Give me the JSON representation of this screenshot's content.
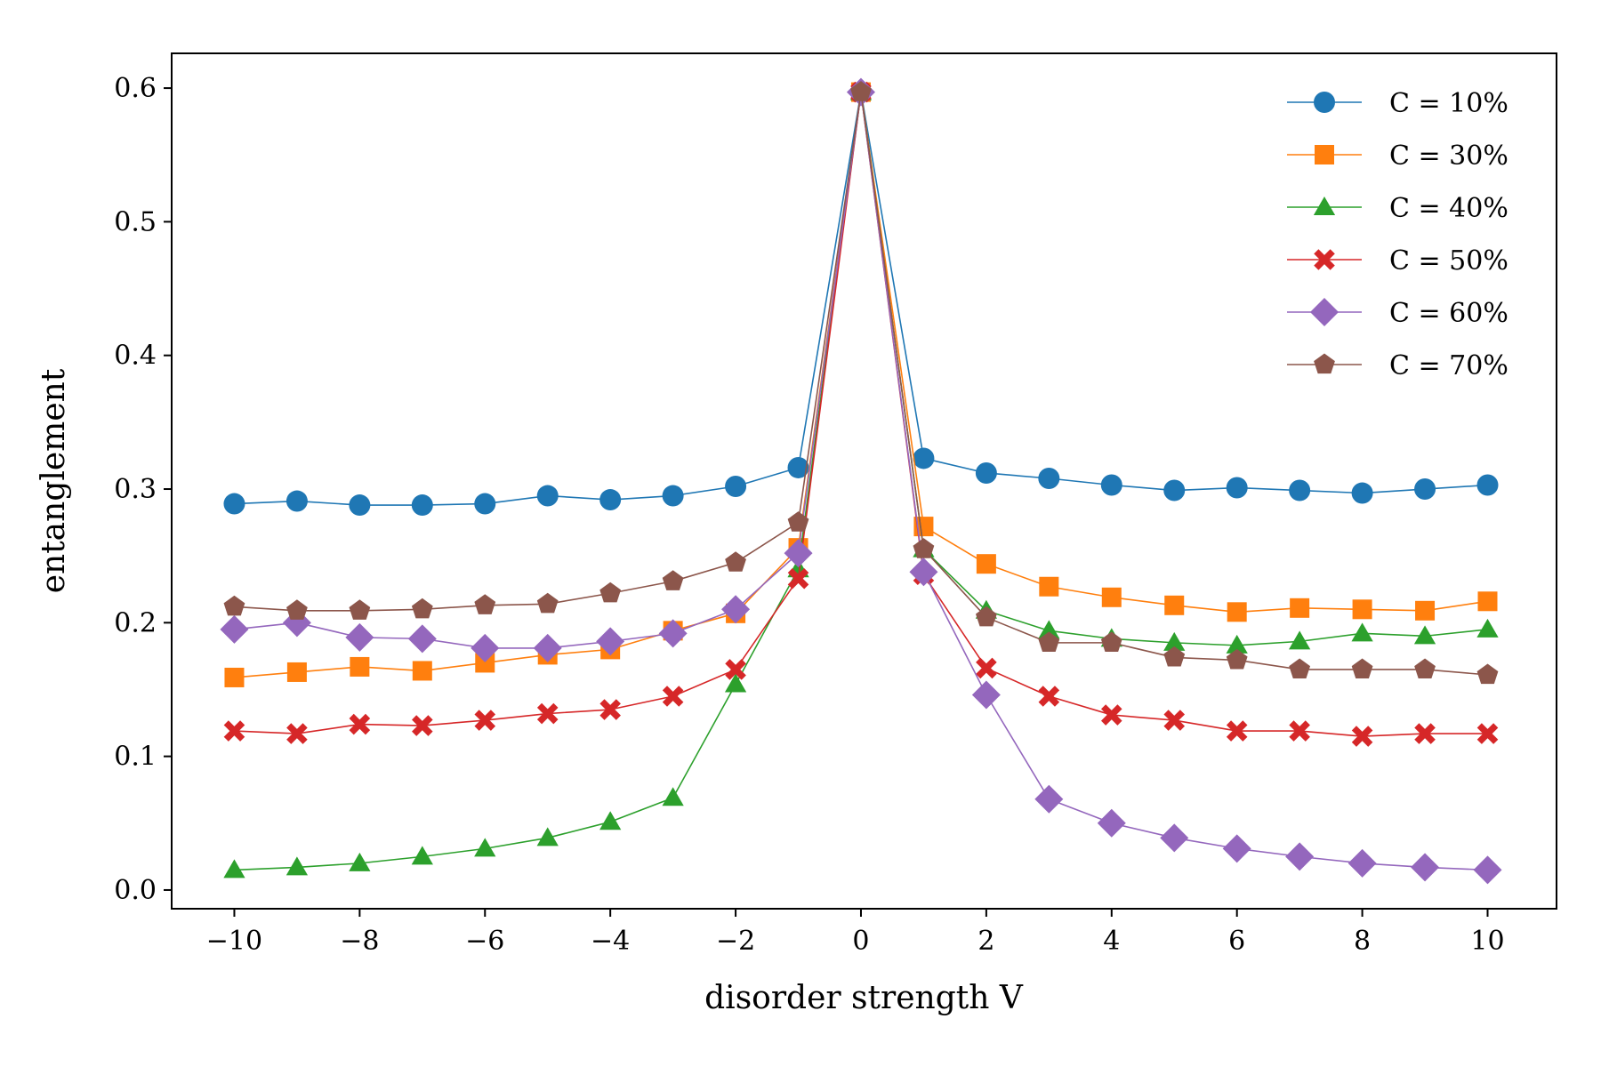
{
  "chart_data": {
    "type": "line",
    "title": "",
    "xlabel": "disorder strength V",
    "ylabel": "entanglement",
    "xlim": [
      -11,
      11.1
    ],
    "ylim": [
      -0.014,
      0.626
    ],
    "xticks": [
      -10,
      -8,
      -6,
      -4,
      -2,
      0,
      2,
      4,
      6,
      8,
      10
    ],
    "xtick_labels": [
      "−10",
      "−8",
      "−6",
      "−4",
      "−2",
      "0",
      "2",
      "4",
      "6",
      "8",
      "10"
    ],
    "yticks": [
      0.0,
      0.1,
      0.2,
      0.3,
      0.4,
      0.5,
      0.6
    ],
    "ytick_labels": [
      "0.0",
      "0.1",
      "0.2",
      "0.3",
      "0.4",
      "0.5",
      "0.6"
    ],
    "grid": false,
    "legend_position": "top-right",
    "x": [
      -10,
      -9,
      -8,
      -7,
      -6,
      -5,
      -4,
      -3,
      -2,
      -1,
      0,
      1,
      2,
      3,
      4,
      5,
      6,
      7,
      8,
      9,
      10
    ],
    "series": [
      {
        "name": "C = 10%",
        "color": "#1f77b4",
        "marker": "circle",
        "values": [
          0.289,
          0.291,
          0.288,
          0.288,
          0.289,
          0.295,
          0.292,
          0.295,
          0.302,
          0.316,
          0.597,
          0.323,
          0.312,
          0.308,
          0.303,
          0.299,
          0.301,
          0.299,
          0.297,
          0.3,
          0.303
        ]
      },
      {
        "name": "C = 30%",
        "color": "#ff7f0e",
        "marker": "square",
        "values": [
          0.159,
          0.163,
          0.167,
          0.164,
          0.17,
          0.176,
          0.18,
          0.194,
          0.207,
          0.256,
          0.597,
          0.272,
          0.244,
          0.227,
          0.219,
          0.213,
          0.208,
          0.211,
          0.21,
          0.209,
          0.216
        ]
      },
      {
        "name": "C = 40%",
        "color": "#2ca02c",
        "marker": "triangle",
        "values": [
          0.015,
          0.017,
          0.02,
          0.025,
          0.031,
          0.039,
          0.051,
          0.069,
          0.154,
          0.24,
          0.597,
          0.255,
          0.209,
          0.194,
          0.188,
          0.185,
          0.183,
          0.186,
          0.192,
          0.19,
          0.195
        ]
      },
      {
        "name": "C = 50%",
        "color": "#d62728",
        "marker": "x",
        "values": [
          0.119,
          0.117,
          0.124,
          0.123,
          0.127,
          0.132,
          0.135,
          0.145,
          0.165,
          0.233,
          0.597,
          0.236,
          0.166,
          0.145,
          0.131,
          0.127,
          0.119,
          0.119,
          0.115,
          0.117,
          0.117
        ]
      },
      {
        "name": "C = 60%",
        "color": "#9467bd",
        "marker": "diamond",
        "values": [
          0.195,
          0.2,
          0.189,
          0.188,
          0.181,
          0.181,
          0.186,
          0.192,
          0.21,
          0.252,
          0.597,
          0.238,
          0.146,
          0.068,
          0.05,
          0.039,
          0.031,
          0.025,
          0.02,
          0.017,
          0.015
        ]
      },
      {
        "name": "C = 70%",
        "color": "#8c564b",
        "marker": "pentagon",
        "values": [
          0.212,
          0.209,
          0.209,
          0.21,
          0.213,
          0.214,
          0.222,
          0.231,
          0.245,
          0.275,
          0.597,
          0.255,
          0.204,
          0.185,
          0.185,
          0.174,
          0.172,
          0.165,
          0.165,
          0.165,
          0.161
        ]
      }
    ]
  }
}
